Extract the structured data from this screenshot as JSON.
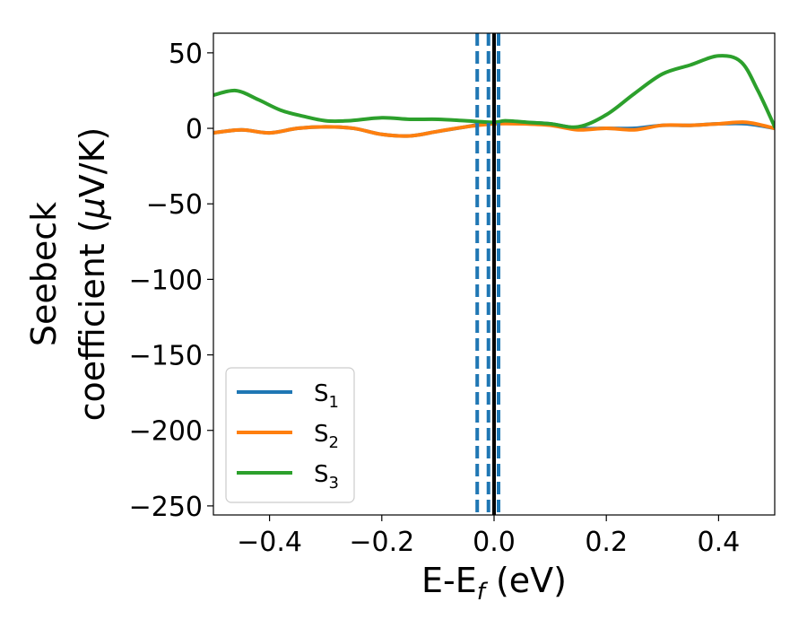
{
  "chart_data": {
    "type": "line",
    "title": "",
    "xlabel": {
      "main": "E-E",
      "sub": "f",
      "tail": " (eV)"
    },
    "ylabel": {
      "line1": "Seebeck",
      "line2_pre": "coefficient  (",
      "line2_mu": "μ",
      "line2_post": "V/K)"
    },
    "xlim": [
      -0.5,
      0.5
    ],
    "ylim": [
      -256,
      63
    ],
    "xticks": [
      {
        "value": -0.4,
        "label": "−0.4"
      },
      {
        "value": -0.2,
        "label": "−0.2"
      },
      {
        "value": 0.0,
        "label": "0.0"
      },
      {
        "value": 0.2,
        "label": "0.2"
      },
      {
        "value": 0.4,
        "label": "0.4"
      }
    ],
    "yticks": [
      {
        "value": 50,
        "label": "50"
      },
      {
        "value": 0,
        "label": "0"
      },
      {
        "value": -50,
        "label": "−50"
      },
      {
        "value": -100,
        "label": "−100"
      },
      {
        "value": -150,
        "label": "−150"
      },
      {
        "value": -200,
        "label": "−200"
      },
      {
        "value": -250,
        "label": "−250"
      }
    ],
    "grid": false,
    "legend_position": "lower-left",
    "series": [
      {
        "name": "S",
        "subscript": "1",
        "color": "#1f77b4",
        "x": [
          -0.5,
          -0.45,
          -0.4,
          -0.35,
          -0.3,
          -0.25,
          -0.2,
          -0.15,
          -0.1,
          -0.05,
          0.0,
          0.05,
          0.1,
          0.15,
          0.2,
          0.25,
          0.3,
          0.35,
          0.4,
          0.45,
          0.5
        ],
        "y": [
          -3,
          -1,
          -3,
          0,
          1,
          0,
          -4,
          -5,
          -2,
          1,
          4,
          4,
          3,
          0,
          0,
          0,
          2,
          2,
          3,
          3,
          0
        ]
      },
      {
        "name": "S",
        "subscript": "2",
        "color": "#ff7f0e",
        "x": [
          -0.5,
          -0.45,
          -0.4,
          -0.35,
          -0.3,
          -0.25,
          -0.2,
          -0.15,
          -0.1,
          -0.05,
          0.0,
          0.05,
          0.1,
          0.15,
          0.2,
          0.25,
          0.3,
          0.35,
          0.4,
          0.45,
          0.5
        ],
        "y": [
          -3,
          -1,
          -3,
          0,
          1,
          0,
          -4,
          -5,
          -2,
          1,
          3,
          3,
          2,
          -1,
          0,
          -1,
          2,
          2,
          3,
          4,
          0
        ]
      },
      {
        "name": "S",
        "subscript": "3",
        "color": "#2ca02c",
        "x": [
          -0.5,
          -0.46,
          -0.42,
          -0.38,
          -0.34,
          -0.3,
          -0.26,
          -0.2,
          -0.15,
          -0.1,
          -0.05,
          0.0,
          0.02,
          0.06,
          0.1,
          0.15,
          0.2,
          0.25,
          0.3,
          0.35,
          0.4,
          0.44,
          0.47,
          0.5
        ],
        "y": [
          22,
          25,
          19,
          12,
          8,
          5,
          5,
          7,
          6,
          6,
          5,
          4,
          5,
          4,
          3,
          1,
          9,
          23,
          36,
          42,
          48,
          44,
          25,
          1
        ]
      }
    ],
    "vlines": [
      {
        "x": -0.03,
        "style": "dashed",
        "color": "#1f77b4"
      },
      {
        "x": -0.01,
        "style": "dashed",
        "color": "#1f77b4"
      },
      {
        "x": 0.008,
        "style": "dashed",
        "color": "#1f77b4"
      },
      {
        "x": 0.0,
        "style": "solid",
        "color": "#000000"
      }
    ]
  }
}
